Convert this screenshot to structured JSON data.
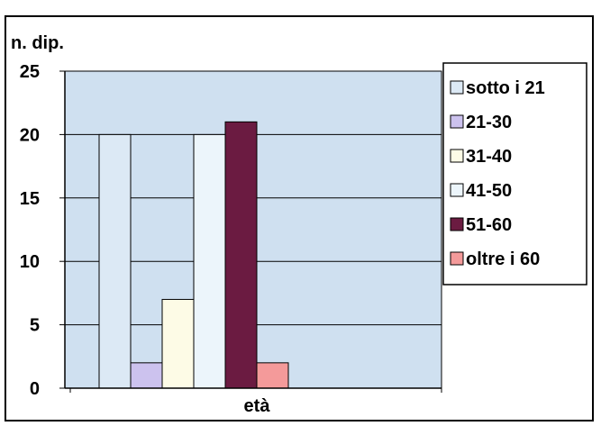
{
  "chart_data": {
    "type": "bar",
    "ylabel": "n. dip.",
    "xlabel": "età",
    "ylim": [
      0,
      25
    ],
    "yticks": [
      "0",
      "5",
      "10",
      "15",
      "20",
      "25"
    ],
    "grid": true,
    "legend_position": "right",
    "plot_background": "#cfe0f0",
    "series": [
      {
        "name": "sotto i 21",
        "value": 20,
        "color": "#dce9f5"
      },
      {
        "name": "21-30",
        "value": 2,
        "color": "#ccc2ee"
      },
      {
        "name": "31-40",
        "value": 7,
        "color": "#fdfbe6"
      },
      {
        "name": "41-50",
        "value": 20,
        "color": "#ecf5fb"
      },
      {
        "name": "51-60",
        "value": 21,
        "color": "#6b1b41"
      },
      {
        "name": "oltre i 60",
        "value": 2,
        "color": "#f49a9a"
      }
    ]
  }
}
